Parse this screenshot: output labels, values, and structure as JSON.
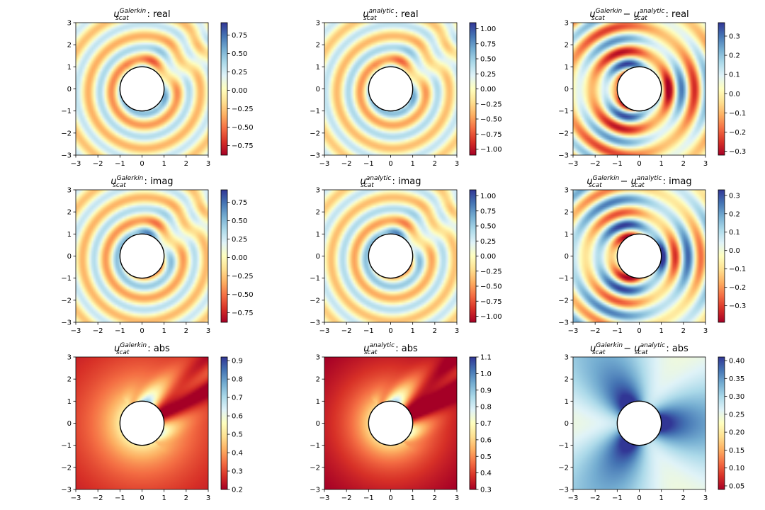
{
  "figure": {
    "colormap": [
      "#a50026",
      "#d73027",
      "#f46d43",
      "#fdae61",
      "#fee090",
      "#ffffbf",
      "#e0f3f8",
      "#abd9e9",
      "#74add1",
      "#4575b4",
      "#313695"
    ],
    "circle_stroke": "#000000"
  },
  "chart_data": [
    {
      "type": "heatmap",
      "panel": "r0c0",
      "title_base": "u",
      "title_sup": "Galerkin",
      "title_sub": "scat",
      "title_rest": " : real",
      "field": "galerkin",
      "component": "real",
      "xlim": [
        -3,
        3
      ],
      "ylim": [
        -3,
        3
      ],
      "xticks": [
        "−3",
        "−2",
        "−1",
        "0",
        "1",
        "2",
        "3"
      ],
      "yticks": [
        "−3",
        "−2",
        "−1",
        "0",
        "1",
        "2",
        "3"
      ],
      "color_range": [
        -0.88,
        0.92
      ],
      "cbar_ticks": [
        0.75,
        0.5,
        0.25,
        0.0,
        -0.25,
        -0.5,
        -0.75
      ],
      "cbar_labels": [
        "0.75",
        "0.50",
        "0.25",
        "0.00",
        "−0.25",
        "−0.50",
        "−0.75"
      ],
      "obstacle_radius": 1
    },
    {
      "type": "heatmap",
      "panel": "r0c1",
      "title_base": "u",
      "title_sup": "analytic",
      "title_sub": "scat",
      "title_rest": " : real",
      "field": "analytic",
      "component": "real",
      "xlim": [
        -3,
        3
      ],
      "ylim": [
        -3,
        3
      ],
      "xticks": [
        "−3",
        "−2",
        "−1",
        "0",
        "1",
        "2",
        "3"
      ],
      "yticks": [
        "−3",
        "−2",
        "−1",
        "0",
        "1",
        "2",
        "3"
      ],
      "color_range": [
        -1.1,
        1.1
      ],
      "cbar_ticks": [
        1.0,
        0.75,
        0.5,
        0.25,
        0.0,
        -0.25,
        -0.5,
        -0.75,
        -1.0
      ],
      "cbar_labels": [
        "1.00",
        "0.75",
        "0.50",
        "0.25",
        "0.00",
        "−0.25",
        "−0.50",
        "−0.75",
        "−1.00"
      ],
      "obstacle_radius": 1
    },
    {
      "type": "heatmap",
      "panel": "r0c2",
      "title_base": "u",
      "title_sup": "Galerkin",
      "title_sub": "scat",
      "title_mid": " − u",
      "title_sup2": "analytic",
      "title_sub2": "scat",
      "title_rest": " : real",
      "field": "diff",
      "component": "real",
      "xlim": [
        -3,
        3
      ],
      "ylim": [
        -3,
        3
      ],
      "xticks": [
        "−3",
        "−2",
        "−1",
        "0",
        "1",
        "2",
        "3"
      ],
      "yticks": [
        "−3",
        "−2",
        "−1",
        "0",
        "1",
        "2",
        "3"
      ],
      "color_range": [
        -0.32,
        0.37
      ],
      "cbar_ticks": [
        0.3,
        0.2,
        0.1,
        0.0,
        -0.1,
        -0.2,
        -0.3
      ],
      "cbar_labels": [
        "0.3",
        "0.2",
        "0.1",
        "0.0",
        "−0.1",
        "−0.2",
        "−0.3"
      ],
      "obstacle_radius": 1
    },
    {
      "type": "heatmap",
      "panel": "r1c0",
      "title_base": "u",
      "title_sup": "Galerkin",
      "title_sub": "scat",
      "title_rest": " : imag",
      "field": "galerkin",
      "component": "imag",
      "xlim": [
        -3,
        3
      ],
      "ylim": [
        -3,
        3
      ],
      "xticks": [
        "−3",
        "−2",
        "−1",
        "0",
        "1",
        "2",
        "3"
      ],
      "yticks": [
        "−3",
        "−2",
        "−1",
        "0",
        "1",
        "2",
        "3"
      ],
      "color_range": [
        -0.88,
        0.92
      ],
      "cbar_ticks": [
        0.75,
        0.5,
        0.25,
        0.0,
        -0.25,
        -0.5,
        -0.75
      ],
      "cbar_labels": [
        "0.75",
        "0.50",
        "0.25",
        "0.00",
        "−0.25",
        "−0.50",
        "−0.75"
      ],
      "obstacle_radius": 1
    },
    {
      "type": "heatmap",
      "panel": "r1c1",
      "title_base": "u",
      "title_sup": "analytic",
      "title_sub": "scat",
      "title_rest": " : imag",
      "field": "analytic",
      "component": "imag",
      "xlim": [
        -3,
        3
      ],
      "ylim": [
        -3,
        3
      ],
      "xticks": [
        "−3",
        "−2",
        "−1",
        "0",
        "1",
        "2",
        "3"
      ],
      "yticks": [
        "−3",
        "−2",
        "−1",
        "0",
        "1",
        "2",
        "3"
      ],
      "color_range": [
        -1.1,
        1.1
      ],
      "cbar_ticks": [
        1.0,
        0.75,
        0.5,
        0.25,
        0.0,
        -0.25,
        -0.5,
        -0.75,
        -1.0
      ],
      "cbar_labels": [
        "1.00",
        "0.75",
        "0.50",
        "0.25",
        "0.00",
        "−0.25",
        "−0.50",
        "−0.75",
        "−1.00"
      ],
      "obstacle_radius": 1
    },
    {
      "type": "heatmap",
      "panel": "r1c2",
      "title_base": "u",
      "title_sup": "Galerkin",
      "title_sub": "scat",
      "title_mid": " − u",
      "title_sup2": "analytic",
      "title_sub2": "scat",
      "title_rest": " : imag",
      "field": "diff",
      "component": "imag",
      "xlim": [
        -3,
        3
      ],
      "ylim": [
        -3,
        3
      ],
      "xticks": [
        "−3",
        "−2",
        "−1",
        "0",
        "1",
        "2",
        "3"
      ],
      "yticks": [
        "−3",
        "−2",
        "−1",
        "0",
        "1",
        "2",
        "3"
      ],
      "color_range": [
        -0.39,
        0.33
      ],
      "cbar_ticks": [
        0.3,
        0.2,
        0.1,
        0.0,
        -0.1,
        -0.2,
        -0.3
      ],
      "cbar_labels": [
        "0.3",
        "0.2",
        "0.1",
        "0.0",
        "−0.1",
        "−0.2",
        "−0.3"
      ],
      "obstacle_radius": 1
    },
    {
      "type": "heatmap",
      "panel": "r2c0",
      "title_base": "u",
      "title_sup": "Galerkin",
      "title_sub": "scat",
      "title_rest": " : abs",
      "field": "galerkin",
      "component": "abs",
      "xlim": [
        -3,
        3
      ],
      "ylim": [
        -3,
        3
      ],
      "xticks": [
        "−3",
        "−2",
        "−1",
        "0",
        "1",
        "2",
        "3"
      ],
      "yticks": [
        "−3",
        "−2",
        "−1",
        "0",
        "1",
        "2",
        "3"
      ],
      "color_range": [
        0.2,
        0.92
      ],
      "cbar_ticks": [
        0.9,
        0.8,
        0.7,
        0.6,
        0.5,
        0.4,
        0.3,
        0.2
      ],
      "cbar_labels": [
        "0.9",
        "0.8",
        "0.7",
        "0.6",
        "0.5",
        "0.4",
        "0.3",
        "0.2"
      ],
      "obstacle_radius": 1
    },
    {
      "type": "heatmap",
      "panel": "r2c1",
      "title_base": "u",
      "title_sup": "analytic",
      "title_sub": "scat",
      "title_rest": " : abs",
      "field": "analytic",
      "component": "abs",
      "xlim": [
        -3,
        3
      ],
      "ylim": [
        -3,
        3
      ],
      "xticks": [
        "−3",
        "−2",
        "−1",
        "0",
        "1",
        "2",
        "3"
      ],
      "yticks": [
        "−3",
        "−2",
        "−1",
        "0",
        "1",
        "2",
        "3"
      ],
      "color_range": [
        0.3,
        1.1
      ],
      "cbar_ticks": [
        1.1,
        1.0,
        0.9,
        0.8,
        0.7,
        0.6,
        0.5,
        0.4,
        0.3
      ],
      "cbar_labels": [
        "1.1",
        "1.0",
        "0.9",
        "0.8",
        "0.7",
        "0.6",
        "0.5",
        "0.4",
        "0.3"
      ],
      "obstacle_radius": 1
    },
    {
      "type": "heatmap",
      "panel": "r2c2",
      "title_base": "u",
      "title_sup": "Galerkin",
      "title_sub": "scat",
      "title_mid": " − u",
      "title_sup2": "analytic",
      "title_sub2": "scat",
      "title_rest": " : abs",
      "field": "diff",
      "component": "abs",
      "xlim": [
        -3,
        3
      ],
      "ylim": [
        -3,
        3
      ],
      "xticks": [
        "−3",
        "−2",
        "−1",
        "0",
        "1",
        "2",
        "3"
      ],
      "yticks": [
        "−3",
        "−2",
        "−1",
        "0",
        "1",
        "2",
        "3"
      ],
      "color_range": [
        0.04,
        0.41
      ],
      "cbar_ticks": [
        0.4,
        0.35,
        0.3,
        0.25,
        0.2,
        0.15,
        0.1,
        0.05
      ],
      "cbar_labels": [
        "0.40",
        "0.35",
        "0.30",
        "0.25",
        "0.20",
        "0.15",
        "0.10",
        "0.05"
      ],
      "obstacle_radius": 1
    }
  ]
}
